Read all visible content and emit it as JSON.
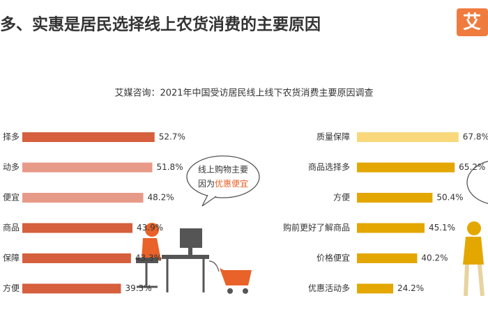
{
  "header": {
    "title": "多、实惠是居民选择线上农货消费的主要原因",
    "logo": "艾"
  },
  "subtitle": "艾媒咨询：2021年中国受访居民线上线下农货消费主要原因调查",
  "bubble": {
    "line1": "线上购物主要",
    "line2_prefix": "因为",
    "line2_highlight": "优惠便宜"
  },
  "chart_data": [
    {
      "type": "bar",
      "orientation": "horizontal",
      "categories": [
        "择多",
        "动多",
        "便宜",
        "商品",
        "保障",
        "方便"
      ],
      "values": [
        52.7,
        51.8,
        48.2,
        43.9,
        43.3,
        39.3
      ],
      "value_labels": [
        "52.7%",
        "51.8%",
        "48.2%",
        "43.9%",
        "43.3%",
        "39.3%"
      ],
      "colors": [
        "#d65f3d",
        "#e89a88",
        "#e89a88",
        "#d65f3d",
        "#d65f3d",
        "#d65f3d"
      ]
    },
    {
      "type": "bar",
      "orientation": "horizontal",
      "categories": [
        "质量保障",
        "商品选择多",
        "方便",
        "购前更好了解商品",
        "价格便宜",
        "优惠活动多"
      ],
      "values": [
        67.8,
        65.2,
        50.4,
        45.1,
        40.2,
        24.2
      ],
      "value_labels": [
        "67.8%",
        "65.2%",
        "50.4%",
        "45.1%",
        "40.2%",
        "24.2%"
      ],
      "colors": [
        "#f8d87a",
        "#e3a700",
        "#e3a700",
        "#e3a700",
        "#e3a700",
        "#e3a700"
      ]
    }
  ]
}
